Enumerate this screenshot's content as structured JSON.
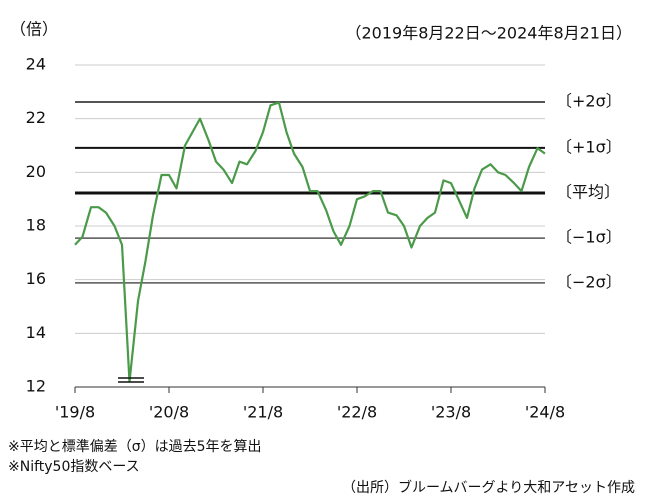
{
  "chart_data": {
    "type": "line",
    "y_unit_label": "（倍）",
    "period": "（2019年8月22日～2024年8月21日）",
    "notes": [
      "※平均と標準偏差（σ）は過去5年を算出",
      "※Nifty50指数ベース"
    ],
    "source": "（出所）ブルームバーグより大和アセット作成",
    "x": [
      2019.64,
      2019.72,
      2019.81,
      2019.89,
      2019.97,
      2020.06,
      2020.14,
      2020.22,
      2020.31,
      2020.39,
      2020.47,
      2020.56,
      2020.64,
      2020.72,
      2020.81,
      2020.89,
      2020.97,
      2021.06,
      2021.14,
      2021.22,
      2021.31,
      2021.39,
      2021.47,
      2021.56,
      2021.64,
      2021.72,
      2021.81,
      2021.89,
      2021.97,
      2022.06,
      2022.14,
      2022.22,
      2022.31,
      2022.39,
      2022.47,
      2022.56,
      2022.64,
      2022.72,
      2022.81,
      2022.89,
      2022.97,
      2023.06,
      2023.14,
      2023.22,
      2023.31,
      2023.39,
      2023.47,
      2023.56,
      2023.64,
      2023.72,
      2023.81,
      2023.89,
      2023.97,
      2024.06,
      2024.14,
      2024.22,
      2024.31,
      2024.39,
      2024.47,
      2024.56,
      2024.64
    ],
    "series": [
      {
        "color": "#4a9a4a",
        "values": [
          17.3,
          17.6,
          18.7,
          18.7,
          18.5,
          18.0,
          17.3,
          12.2,
          15.2,
          16.7,
          18.4,
          19.9,
          19.9,
          19.4,
          21.0,
          21.5,
          22.0,
          21.2,
          20.4,
          20.1,
          19.6,
          20.4,
          20.3,
          20.8,
          21.5,
          22.5,
          22.6,
          21.5,
          20.7,
          20.2,
          19.3,
          19.3,
          18.6,
          17.8,
          17.3,
          18.0,
          19.0,
          19.1,
          19.3,
          19.3,
          18.5,
          18.4,
          18.0,
          17.2,
          18.0,
          18.3,
          18.5,
          19.7,
          19.6,
          19.0,
          18.3,
          19.4,
          20.1,
          20.3,
          20.0,
          19.9,
          19.6,
          19.3,
          20.2,
          20.9,
          20.7
        ]
      }
    ],
    "reference_lines": [
      {
        "label": "〔+2σ〕",
        "value": 22.62,
        "color": "#555555",
        "width": 2
      },
      {
        "label": "〔+1σ〕",
        "value": 20.91,
        "color": "#111111",
        "width": 2
      },
      {
        "label": "〔平均〕",
        "value": 19.23,
        "color": "#111111",
        "width": 3
      },
      {
        "label": "〔−1σ〕",
        "value": 17.55,
        "color": "#555555",
        "width": 1.5
      },
      {
        "label": "〔−2σ〕",
        "value": 15.88,
        "color": "#555555",
        "width": 1.5
      }
    ],
    "xlim": [
      2019.64,
      2024.64
    ],
    "xticks": [
      {
        "value": 2019.64,
        "label": "'19/8"
      },
      {
        "value": 2020.64,
        "label": "'20/8"
      },
      {
        "value": 2021.64,
        "label": "'21/8"
      },
      {
        "value": 2022.64,
        "label": "'22/8"
      },
      {
        "value": 2023.64,
        "label": "'23/8"
      },
      {
        "value": 2024.64,
        "label": "'24/8"
      }
    ],
    "ylim": [
      12,
      24
    ],
    "yticks": [
      12,
      14,
      16,
      18,
      20,
      22,
      24
    ],
    "grid": true
  }
}
